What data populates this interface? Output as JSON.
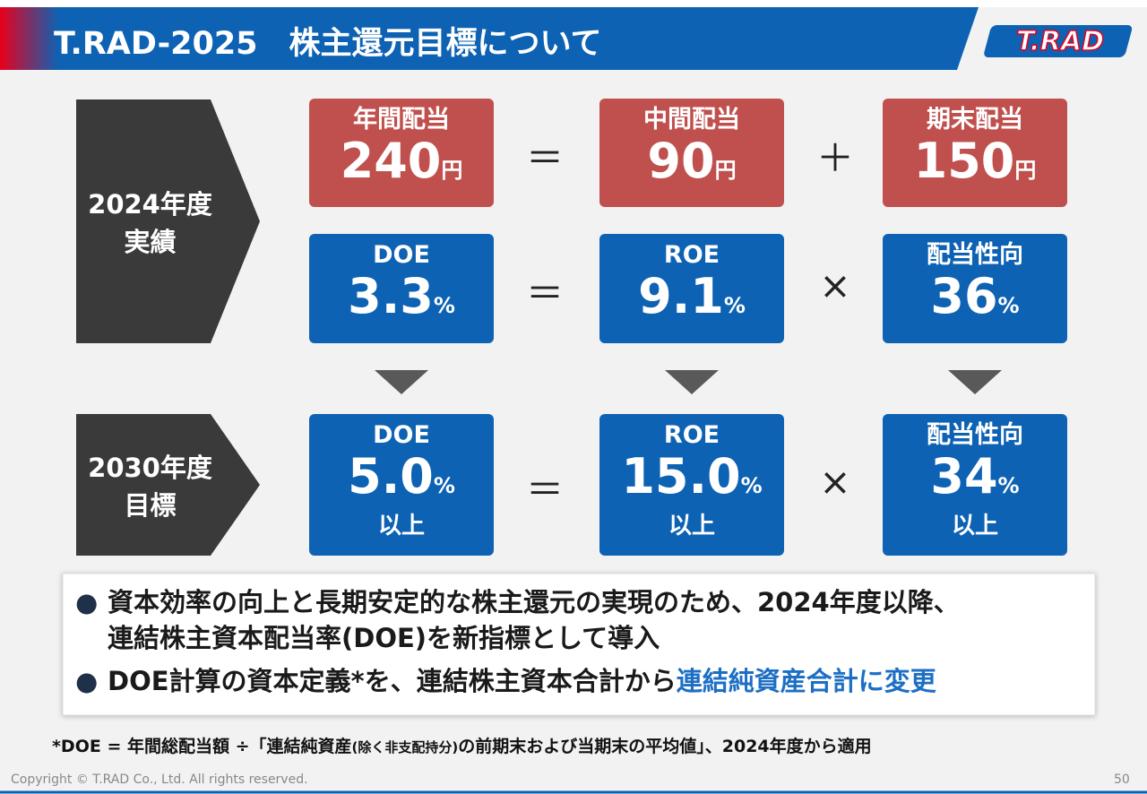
{
  "header": {
    "title": "T.RAD-2025　株主還元目標について",
    "logo": "T.RAD"
  },
  "rows": [
    {
      "label": [
        "2024年度",
        "実績"
      ],
      "color": "#c0504d",
      "boxes": [
        {
          "title": "年間配当",
          "value": "240",
          "unit": "円"
        },
        {
          "title": "中間配当",
          "value": "90",
          "unit": "円"
        },
        {
          "title": "期末配当",
          "value": "150",
          "unit": "円"
        }
      ],
      "operators": [
        "＝",
        "＋"
      ]
    },
    {
      "color": "#0d62b3",
      "boxes": [
        {
          "title": "DOE",
          "value": "3.3",
          "unit": "%"
        },
        {
          "title": "ROE",
          "value": "9.1",
          "unit": "%"
        },
        {
          "title": "配当性向",
          "value": "36",
          "unit": "%"
        }
      ],
      "operators": [
        "＝",
        "×"
      ]
    },
    {
      "label": [
        "2030年度",
        "目標"
      ],
      "color": "#0d62b3",
      "boxes": [
        {
          "title": "DOE",
          "value": "5.0",
          "unit": "%",
          "note": "以上"
        },
        {
          "title": "ROE",
          "value": "15.0",
          "unit": "%",
          "note": "以上"
        },
        {
          "title": "配当性向",
          "value": "34",
          "unit": "%",
          "note": "以上"
        }
      ],
      "operators": [
        "＝",
        "×"
      ]
    }
  ],
  "bullets": [
    {
      "lines": [
        "資本効率の向上と長期安定的な株主還元の実現のため、2024年度以降、",
        "連結株主資本配当率(DOE)を新指標として導入"
      ]
    },
    {
      "text": "DOE計算の資本定義*を、連結株主資本合計から",
      "highlight": "連結純資産合計に変更"
    }
  ],
  "footnote": {
    "before": "*DOE = 年間総配当額 ÷「連結純資産",
    "small": "(除く非支配持分)",
    "after": "の前期末および当期末の平均値」、2024年度から適用"
  },
  "footer": {
    "copyright": "Copyright © T.RAD Co., Ltd. All rights reserved.",
    "page": "50"
  }
}
